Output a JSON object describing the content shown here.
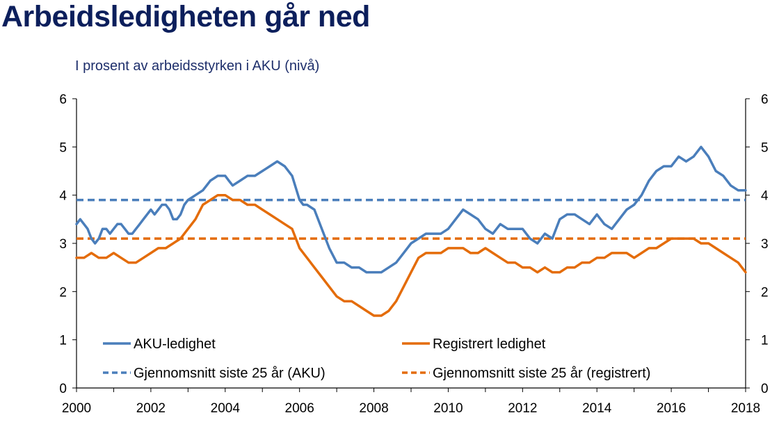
{
  "page": {
    "title": "Arbeidsledigheten går ned",
    "subtitle": "I prosent av arbeidsstyrken i AKU (nivå)"
  },
  "chart_data": {
    "type": "line",
    "title": "Arbeidsledigheten går ned",
    "subtitle": "I prosent av arbeidsstyrken i AKU (nivå)",
    "xlabel": "",
    "ylabel": "",
    "xlim": [
      2000,
      2018
    ],
    "ylim": [
      0,
      6
    ],
    "x_ticks": [
      "2000",
      "2002",
      "2004",
      "2006",
      "2008",
      "2010",
      "2012",
      "2014",
      "2016",
      "2018"
    ],
    "y_ticks_left": [
      "0",
      "1",
      "2",
      "3",
      "4",
      "5",
      "6"
    ],
    "y_ticks_right": [
      "0",
      "1",
      "2",
      "3",
      "4",
      "5",
      "6"
    ],
    "grid": false,
    "legend_position": "bottom, two columns",
    "colors": {
      "aku": "#4a7ebb",
      "registrert": "#e46c0a",
      "axis": "#000000",
      "title": "#0c1f5c"
    },
    "series": [
      {
        "name": "AKU-ledighet",
        "style": "solid",
        "x": [
          2000.0,
          2000.1,
          2000.2,
          2000.3,
          2000.4,
          2000.5,
          2000.6,
          2000.7,
          2000.8,
          2000.9,
          2001.0,
          2001.1,
          2001.2,
          2001.3,
          2001.4,
          2001.5,
          2001.6,
          2001.7,
          2001.8,
          2001.9,
          2002.0,
          2002.1,
          2002.2,
          2002.3,
          2002.4,
          2002.5,
          2002.6,
          2002.7,
          2002.8,
          2002.9,
          2003.0,
          2003.2,
          2003.4,
          2003.6,
          2003.8,
          2004.0,
          2004.1,
          2004.2,
          2004.4,
          2004.6,
          2004.8,
          2005.0,
          2005.2,
          2005.4,
          2005.6,
          2005.8,
          2006.0,
          2006.1,
          2006.2,
          2006.4,
          2006.6,
          2006.8,
          2007.0,
          2007.2,
          2007.4,
          2007.6,
          2007.8,
          2008.0,
          2008.2,
          2008.4,
          2008.6,
          2008.8,
          2009.0,
          2009.2,
          2009.4,
          2009.6,
          2009.8,
          2010.0,
          2010.2,
          2010.4,
          2010.6,
          2010.8,
          2011.0,
          2011.2,
          2011.4,
          2011.6,
          2011.8,
          2012.0,
          2012.2,
          2012.4,
          2012.6,
          2012.8,
          2013.0,
          2013.2,
          2013.4,
          2013.6,
          2013.8,
          2014.0,
          2014.2,
          2014.4,
          2014.6,
          2014.8,
          2015.0,
          2015.2,
          2015.4,
          2015.6,
          2015.8,
          2016.0,
          2016.2,
          2016.4,
          2016.6,
          2016.8,
          2017.0,
          2017.2,
          2017.4,
          2017.6,
          2017.8,
          2018.0
        ],
        "values": [
          3.4,
          3.5,
          3.4,
          3.3,
          3.1,
          3.0,
          3.1,
          3.3,
          3.3,
          3.2,
          3.3,
          3.4,
          3.4,
          3.3,
          3.2,
          3.2,
          3.3,
          3.4,
          3.5,
          3.6,
          3.7,
          3.6,
          3.7,
          3.8,
          3.8,
          3.7,
          3.5,
          3.5,
          3.6,
          3.8,
          3.9,
          4.0,
          4.1,
          4.3,
          4.4,
          4.4,
          4.3,
          4.2,
          4.3,
          4.4,
          4.4,
          4.5,
          4.6,
          4.7,
          4.6,
          4.4,
          3.9,
          3.8,
          3.8,
          3.7,
          3.3,
          2.9,
          2.6,
          2.6,
          2.5,
          2.5,
          2.4,
          2.4,
          2.4,
          2.5,
          2.6,
          2.8,
          3.0,
          3.1,
          3.2,
          3.2,
          3.2,
          3.3,
          3.5,
          3.7,
          3.6,
          3.5,
          3.3,
          3.2,
          3.4,
          3.3,
          3.3,
          3.3,
          3.1,
          3.0,
          3.2,
          3.1,
          3.5,
          3.6,
          3.6,
          3.5,
          3.4,
          3.6,
          3.4,
          3.3,
          3.5,
          3.7,
          3.8,
          4.0,
          4.3,
          4.5,
          4.6,
          4.6,
          4.8,
          4.7,
          4.8,
          5.0,
          4.8,
          4.5,
          4.4,
          4.2,
          4.1,
          4.1
        ]
      },
      {
        "name": "Registrert ledighet",
        "style": "solid",
        "x": [
          2000.0,
          2000.2,
          2000.4,
          2000.6,
          2000.8,
          2001.0,
          2001.2,
          2001.4,
          2001.6,
          2001.8,
          2002.0,
          2002.2,
          2002.4,
          2002.6,
          2002.8,
          2003.0,
          2003.2,
          2003.4,
          2003.6,
          2003.8,
          2004.0,
          2004.2,
          2004.4,
          2004.6,
          2004.8,
          2005.0,
          2005.2,
          2005.4,
          2005.6,
          2005.8,
          2006.0,
          2006.2,
          2006.4,
          2006.6,
          2006.8,
          2007.0,
          2007.2,
          2007.4,
          2007.6,
          2007.8,
          2008.0,
          2008.2,
          2008.4,
          2008.6,
          2008.8,
          2009.0,
          2009.2,
          2009.4,
          2009.6,
          2009.8,
          2010.0,
          2010.2,
          2010.4,
          2010.6,
          2010.8,
          2011.0,
          2011.2,
          2011.4,
          2011.6,
          2011.8,
          2012.0,
          2012.2,
          2012.4,
          2012.6,
          2012.8,
          2013.0,
          2013.2,
          2013.4,
          2013.6,
          2013.8,
          2014.0,
          2014.2,
          2014.4,
          2014.6,
          2014.8,
          2015.0,
          2015.2,
          2015.4,
          2015.6,
          2015.8,
          2016.0,
          2016.2,
          2016.4,
          2016.6,
          2016.8,
          2017.0,
          2017.2,
          2017.4,
          2017.6,
          2017.8,
          2018.0
        ],
        "values": [
          2.7,
          2.7,
          2.8,
          2.7,
          2.7,
          2.8,
          2.7,
          2.6,
          2.6,
          2.7,
          2.8,
          2.9,
          2.9,
          3.0,
          3.1,
          3.3,
          3.5,
          3.8,
          3.9,
          4.0,
          4.0,
          3.9,
          3.9,
          3.8,
          3.8,
          3.7,
          3.6,
          3.5,
          3.4,
          3.3,
          2.9,
          2.7,
          2.5,
          2.3,
          2.1,
          1.9,
          1.8,
          1.8,
          1.7,
          1.6,
          1.5,
          1.5,
          1.6,
          1.8,
          2.1,
          2.4,
          2.7,
          2.8,
          2.8,
          2.8,
          2.9,
          2.9,
          2.9,
          2.8,
          2.8,
          2.9,
          2.8,
          2.7,
          2.6,
          2.6,
          2.5,
          2.5,
          2.4,
          2.5,
          2.4,
          2.4,
          2.5,
          2.5,
          2.6,
          2.6,
          2.7,
          2.7,
          2.8,
          2.8,
          2.8,
          2.7,
          2.8,
          2.9,
          2.9,
          3.0,
          3.1,
          3.1,
          3.1,
          3.1,
          3.0,
          3.0,
          2.9,
          2.8,
          2.7,
          2.6,
          2.4
        ]
      },
      {
        "name": "Gjennomsnitt siste 25 år (AKU)",
        "style": "dashed",
        "x": [
          2000,
          2018
        ],
        "values": [
          3.9,
          3.9
        ]
      },
      {
        "name": "Gjennomsnitt siste 25 år (registrert)",
        "style": "dashed",
        "x": [
          2000,
          2018
        ],
        "values": [
          3.1,
          3.1
        ]
      }
    ]
  }
}
